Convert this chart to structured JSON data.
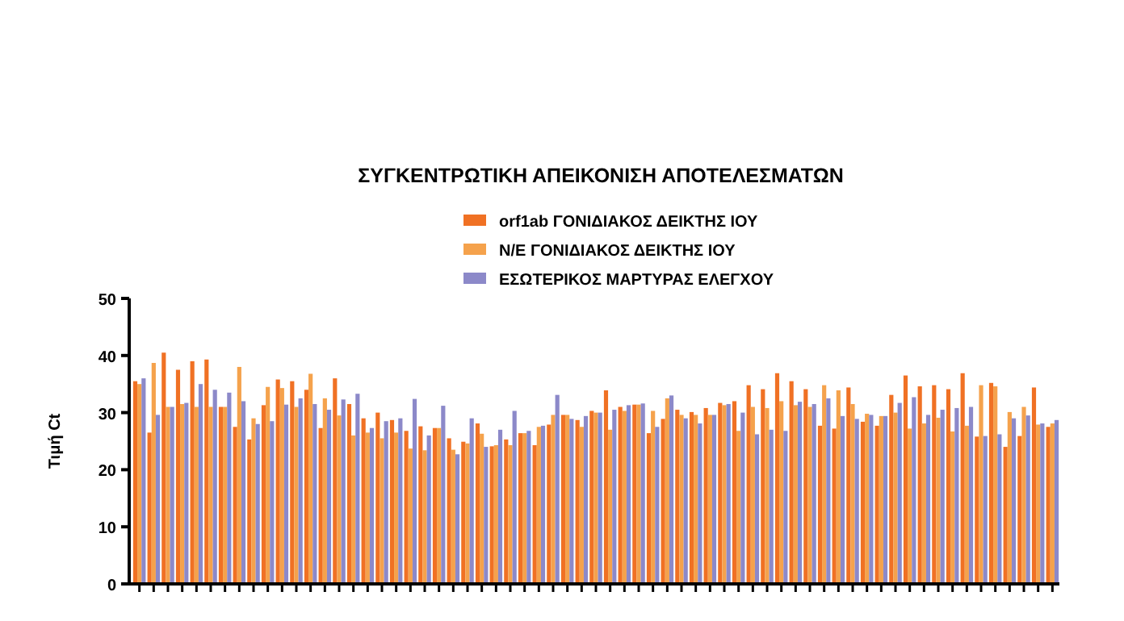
{
  "chart_data": {
    "type": "bar",
    "title": "ΣΥΓΚΕΝΤΡΩΤΙΚΗ ΑΠΕΙΚΟΝΙΣΗ ΑΠΟΤΕΛΕΣΜΑΤΩΝ",
    "ylabel": "Τιμή Ct",
    "categories": [
      null,
      null,
      null,
      null,
      null,
      null,
      null,
      null,
      null,
      null,
      null,
      null,
      null,
      null,
      null,
      null,
      null,
      null,
      null,
      null,
      null,
      null,
      null,
      null,
      null,
      null,
      null,
      null,
      null,
      null,
      null,
      null,
      null,
      null,
      null,
      null,
      null,
      null,
      null,
      null,
      null,
      null,
      null,
      null,
      null,
      null,
      null,
      null,
      null,
      null,
      null,
      null,
      null,
      null,
      null,
      null,
      null,
      null,
      null,
      null,
      null,
      null,
      null,
      null,
      null
    ],
    "series": [
      {
        "name": "orf1ab ΓΟΝΙΔΙΑΚΟΣ ΔΕΙΚΤΗΣ ΙΟΥ",
        "color": "#f07124",
        "values": [
          35.5,
          26.5,
          40.5,
          37.5,
          39,
          39.3,
          31,
          27.5,
          25.3,
          31.3,
          35.8,
          35.5,
          34,
          27.3,
          36,
          31.5,
          29,
          30,
          28.7,
          26.8,
          27.6,
          27.3,
          25.5,
          24.9,
          28.1,
          24.1,
          25.3,
          26.4,
          24.3,
          27.9,
          29.6,
          28.7,
          30.3,
          33.9,
          31,
          31.4,
          26.4,
          28.9,
          30.5,
          30.1,
          30.8,
          31.7,
          32,
          34.8,
          34.1,
          36.9,
          35.5,
          34.1,
          27.7,
          27.2,
          34.4,
          28.4,
          27.7,
          33.1,
          36.5,
          34.6,
          34.8,
          34.1,
          36.9,
          25.8,
          35.2,
          24,
          25.9,
          34.4,
          27.5
        ]
      },
      {
        "name": "Ν/Ε ΓΟΝΙΔΙΑΚΟΣ ΔΕΙΚΤΗΣ ΙΟΥ",
        "color": "#f5a24c",
        "values": [
          35,
          38.7,
          31,
          31.5,
          31,
          31,
          31,
          38,
          29,
          34.5,
          34.3,
          31,
          36.8,
          32.5,
          29.5,
          26,
          26.5,
          25.5,
          26.5,
          23.7,
          23.4,
          27.3,
          23.5,
          24.6,
          26.3,
          24.3,
          24.3,
          26.4,
          27.5,
          29.6,
          29.6,
          27.5,
          30,
          27,
          30.3,
          31.4,
          30.3,
          32.5,
          29.6,
          29.6,
          29.6,
          31.3,
          26.8,
          31,
          30.8,
          32,
          31.3,
          31,
          34.8,
          33.9,
          31.5,
          29.8,
          29.4,
          30,
          27.2,
          28.1,
          29.1,
          26.7,
          27.7,
          34.8,
          34.6,
          30.1,
          31,
          27.9,
          28.1
        ]
      },
      {
        "name": "ΕΣΩΤΕΡΙΚΟΣ ΜΑΡΤΥΡΑΣ ΕΛΕΓΧΟΥ",
        "color": "#8c89c9",
        "values": [
          36,
          29.6,
          31,
          31.7,
          35,
          34,
          33.5,
          32,
          28,
          28.5,
          31.4,
          32.5,
          31.5,
          30.5,
          32.3,
          33.3,
          27.3,
          28.5,
          29,
          32.4,
          26,
          31.2,
          22.7,
          29,
          24,
          27,
          30.3,
          26.8,
          27.7,
          33.1,
          28.9,
          29.4,
          30,
          30.5,
          31.3,
          31.6,
          27.5,
          33,
          29,
          28.1,
          29.6,
          31.5,
          30,
          26.2,
          27,
          26.8,
          31.9,
          31.5,
          32.5,
          29.4,
          28.9,
          29.6,
          29.4,
          31.7,
          32.7,
          29.6,
          30.5,
          30.8,
          31,
          25.9,
          26.2,
          29,
          29.5,
          28.1,
          28.7
        ]
      }
    ],
    "ylim": [
      0,
      50
    ],
    "yticks": [
      0,
      10,
      20,
      30,
      40,
      50
    ],
    "legend": "top",
    "grid": false
  }
}
